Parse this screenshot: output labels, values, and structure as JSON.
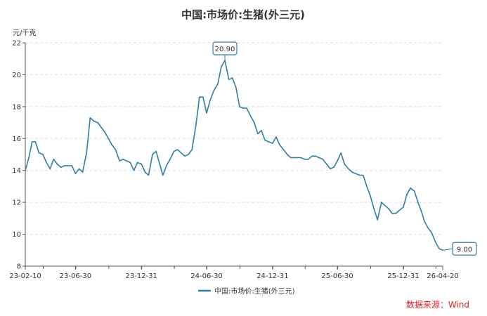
{
  "chart_data": {
    "type": "line",
    "title": "中国:市场价:生猪(外三元)",
    "ylabel": "元/千克",
    "ylim": [
      8,
      22
    ],
    "yticks": [
      8,
      10,
      12,
      14,
      16,
      18,
      20,
      22
    ],
    "x_range": [
      "2023-02-10",
      "2026-04-20"
    ],
    "xtick_labels": [
      {
        "date": "2023-02-10",
        "label": "23-02-10"
      },
      {
        "date": "2023-06-30",
        "label": "23-06-30"
      },
      {
        "date": "2023-12-31",
        "label": "23-12-31"
      },
      {
        "date": "2024-06-30",
        "label": "24-06-30"
      },
      {
        "date": "2024-12-31",
        "label": "24-12-31"
      },
      {
        "date": "2025-06-30",
        "label": "25-06-30"
      },
      {
        "date": "2025-12-31",
        "label": "25-12-31"
      },
      {
        "date": "2026-04-20",
        "label": "26-04-20"
      }
    ],
    "grid": true,
    "legend": "bottom",
    "series": [
      {
        "name": "中国:市场价:生猪(外三元)",
        "color": "#2e7ea6",
        "points": [
          [
            "2023-02-10",
            14.0
          ],
          [
            "2023-02-20",
            14.8
          ],
          [
            "2023-03-01",
            15.8
          ],
          [
            "2023-03-10",
            15.8
          ],
          [
            "2023-03-20",
            15.1
          ],
          [
            "2023-03-31",
            15.0
          ],
          [
            "2023-04-10",
            14.5
          ],
          [
            "2023-04-20",
            14.1
          ],
          [
            "2023-04-30",
            14.7
          ],
          [
            "2023-05-10",
            14.4
          ],
          [
            "2023-05-20",
            14.2
          ],
          [
            "2023-05-31",
            14.3
          ],
          [
            "2023-06-10",
            14.3
          ],
          [
            "2023-06-20",
            14.3
          ],
          [
            "2023-06-30",
            13.8
          ],
          [
            "2023-07-10",
            14.1
          ],
          [
            "2023-07-20",
            13.9
          ],
          [
            "2023-07-31",
            15.1
          ],
          [
            "2023-08-10",
            17.3
          ],
          [
            "2023-08-20",
            17.1
          ],
          [
            "2023-08-31",
            17.0
          ],
          [
            "2023-09-10",
            16.7
          ],
          [
            "2023-09-20",
            16.4
          ],
          [
            "2023-09-30",
            16.0
          ],
          [
            "2023-10-10",
            15.6
          ],
          [
            "2023-10-20",
            15.3
          ],
          [
            "2023-10-31",
            14.6
          ],
          [
            "2023-11-10",
            14.7
          ],
          [
            "2023-11-20",
            14.6
          ],
          [
            "2023-11-30",
            14.5
          ],
          [
            "2023-12-10",
            14.0
          ],
          [
            "2023-12-20",
            14.5
          ],
          [
            "2023-12-31",
            14.4
          ],
          [
            "2024-01-10",
            13.9
          ],
          [
            "2024-01-20",
            13.7
          ],
          [
            "2024-01-31",
            15.0
          ],
          [
            "2024-02-10",
            15.2
          ],
          [
            "2024-02-20",
            14.4
          ],
          [
            "2024-02-29",
            13.7
          ],
          [
            "2024-03-10",
            14.3
          ],
          [
            "2024-03-20",
            14.7
          ],
          [
            "2024-03-31",
            15.2
          ],
          [
            "2024-04-10",
            15.3
          ],
          [
            "2024-04-20",
            15.1
          ],
          [
            "2024-04-30",
            14.9
          ],
          [
            "2024-05-10",
            15.0
          ],
          [
            "2024-05-20",
            15.3
          ],
          [
            "2024-05-31",
            16.8
          ],
          [
            "2024-06-10",
            18.6
          ],
          [
            "2024-06-20",
            18.6
          ],
          [
            "2024-06-30",
            17.6
          ],
          [
            "2024-07-10",
            18.4
          ],
          [
            "2024-07-20",
            19.0
          ],
          [
            "2024-07-31",
            19.4
          ],
          [
            "2024-08-10",
            20.5
          ],
          [
            "2024-08-20",
            20.9
          ],
          [
            "2024-08-31",
            19.7
          ],
          [
            "2024-09-10",
            19.8
          ],
          [
            "2024-09-20",
            19.2
          ],
          [
            "2024-09-30",
            18.0
          ],
          [
            "2024-10-10",
            17.9
          ],
          [
            "2024-10-20",
            17.9
          ],
          [
            "2024-10-31",
            17.4
          ],
          [
            "2024-11-10",
            17.0
          ],
          [
            "2024-11-20",
            16.3
          ],
          [
            "2024-11-30",
            16.5
          ],
          [
            "2024-12-10",
            15.9
          ],
          [
            "2024-12-20",
            15.8
          ],
          [
            "2024-12-31",
            15.7
          ],
          [
            "2025-01-10",
            16.1
          ],
          [
            "2025-01-20",
            15.6
          ],
          [
            "2025-01-31",
            15.3
          ],
          [
            "2025-02-10",
            15.0
          ],
          [
            "2025-02-20",
            14.8
          ],
          [
            "2025-02-28",
            14.8
          ],
          [
            "2025-03-10",
            14.8
          ],
          [
            "2025-03-20",
            14.8
          ],
          [
            "2025-03-31",
            14.7
          ],
          [
            "2025-04-10",
            14.7
          ],
          [
            "2025-04-20",
            14.9
          ],
          [
            "2025-04-30",
            14.9
          ],
          [
            "2025-05-10",
            14.8
          ],
          [
            "2025-05-20",
            14.7
          ],
          [
            "2025-05-31",
            14.4
          ],
          [
            "2025-06-10",
            14.1
          ],
          [
            "2025-06-20",
            14.2
          ],
          [
            "2025-06-30",
            14.6
          ],
          [
            "2025-07-10",
            15.1
          ],
          [
            "2025-07-20",
            14.4
          ],
          [
            "2025-07-31",
            14.1
          ],
          [
            "2025-08-10",
            13.9
          ],
          [
            "2025-08-20",
            13.8
          ],
          [
            "2025-08-31",
            13.7
          ],
          [
            "2025-09-10",
            13.7
          ],
          [
            "2025-09-20",
            13.0
          ],
          [
            "2025-09-30",
            12.4
          ],
          [
            "2025-10-10",
            11.6
          ],
          [
            "2025-10-20",
            10.9
          ],
          [
            "2025-10-31",
            12.0
          ],
          [
            "2025-11-10",
            11.8
          ],
          [
            "2025-11-20",
            11.6
          ],
          [
            "2025-11-30",
            11.3
          ],
          [
            "2025-12-10",
            11.3
          ],
          [
            "2025-12-20",
            11.5
          ],
          [
            "2025-12-31",
            11.7
          ],
          [
            "2026-01-10",
            12.5
          ],
          [
            "2026-01-20",
            12.9
          ],
          [
            "2026-01-31",
            12.7
          ],
          [
            "2026-02-10",
            12.0
          ],
          [
            "2026-02-20",
            11.4
          ],
          [
            "2026-02-28",
            10.8
          ],
          [
            "2026-03-10",
            10.4
          ],
          [
            "2026-03-20",
            10.1
          ],
          [
            "2026-03-31",
            9.5
          ],
          [
            "2026-04-10",
            9.1
          ],
          [
            "2026-04-20",
            9.0
          ]
        ]
      }
    ],
    "annotations": [
      {
        "date": "2024-08-20",
        "value": 20.9,
        "label": "20.90",
        "position": "above"
      },
      {
        "date": "2026-04-20",
        "value": 9.0,
        "label": "9.00",
        "position": "right"
      }
    ],
    "source_note": "数据来源：Wind"
  }
}
